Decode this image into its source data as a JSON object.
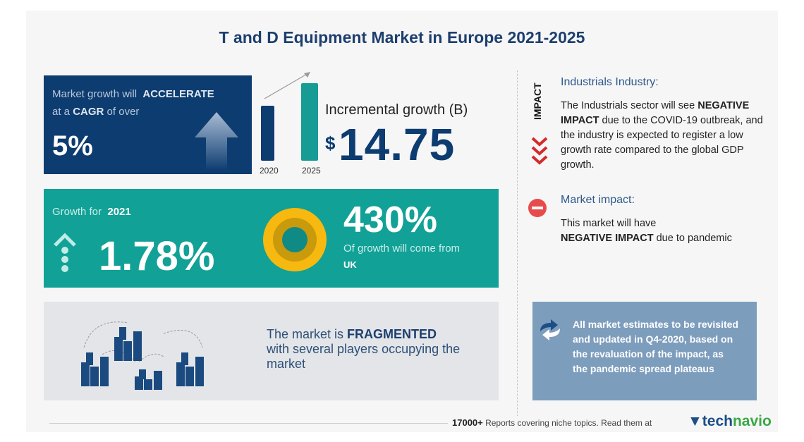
{
  "title": "T and D Equipment Market in Europe 2021-2025",
  "cagr": {
    "line1_pre": "Market growth will",
    "line1_bold": "ACCELERATE",
    "line2_pre": "at a",
    "line2_bold": "CAGR",
    "line2_post": "of over",
    "value": "5%"
  },
  "incremental": {
    "bar_labels": [
      "2020",
      "2025"
    ],
    "label": "Incremental growth (B)",
    "currency": "$",
    "value": "14.75"
  },
  "growth": {
    "label_pre": "Growth for",
    "label_year": "2021",
    "value": "1.78%",
    "share": "430%",
    "share_text": "Of growth will come from",
    "region": "UK"
  },
  "fragmented": {
    "pre": "The market is",
    "bold": "FRAGMENTED",
    "rest": "with several players occupying the market"
  },
  "impact": {
    "vertical_label": "IMPACT",
    "industry_heading": "Industrials Industry:",
    "industry_pre": "The Industrials sector will see",
    "industry_bold": "NEGATIVE IMPACT",
    "industry_post": "due to the COVID-19 outbreak, and the industry is expected to register a low growth rate compared to the global GDP growth.",
    "market_heading": "Market impact:",
    "market_pre": "This market will have",
    "market_bold": "NEGATIVE IMPACT",
    "market_post": "due to pandemic"
  },
  "note": "All market estimates to be revisited and updated in Q4-2020, based on the revaluation of the impact, as the pandemic spread plateaus",
  "footer": {
    "count": "17000+",
    "text": "Reports covering niche topics. Read them at",
    "brand_a": "tech",
    "brand_b": "navio"
  },
  "colors": {
    "navy": "#0d3c70",
    "teal": "#12a196",
    "red": "#e84b4b",
    "yellow": "#f7b90f"
  }
}
